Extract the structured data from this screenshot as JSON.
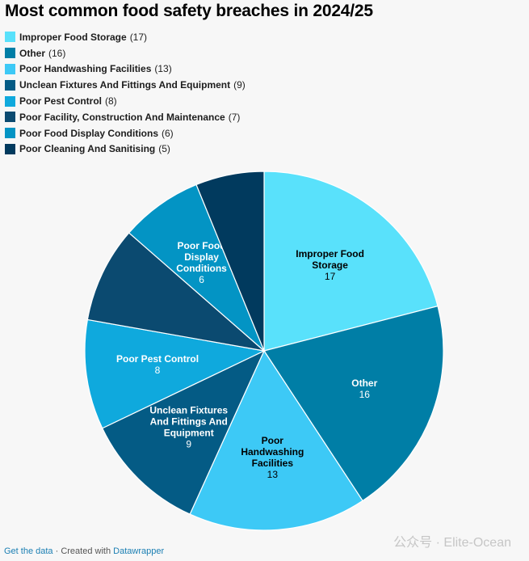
{
  "title": "Most common food safety breaches in 2024/25",
  "chart_data": {
    "type": "pie",
    "title": "Most common food safety breaches in 2024/25",
    "legend_position": "top-left",
    "slices": [
      {
        "label": "Improper Food Storage",
        "value": 17,
        "color": "#59e1fb",
        "label_color": "#000000",
        "show_label": true
      },
      {
        "label": "Other",
        "value": 16,
        "color": "#007ea6",
        "label_color": "#ffffff",
        "show_label": true
      },
      {
        "label": "Poor Handwashing Facilities",
        "value": 13,
        "color": "#3dc9f6",
        "label_color": "#000000",
        "show_label": true
      },
      {
        "label": "Unclean Fixtures And Fittings And Equipment",
        "value": 9,
        "color": "#045b85",
        "label_color": "#ffffff",
        "show_label": true
      },
      {
        "label": "Poor Pest Control",
        "value": 8,
        "color": "#0fa9dd",
        "label_color": "#ffffff",
        "show_label": true
      },
      {
        "label": "Poor Facility, Construction And Maintenance",
        "value": 7,
        "color": "#0b4a70",
        "label_color": "#ffffff",
        "show_label": false
      },
      {
        "label": "Poor Food Display Conditions",
        "value": 6,
        "color": "#0394c4",
        "label_color": "#ffffff",
        "show_label": true
      },
      {
        "label": "Poor Cleaning And Sanitising",
        "value": 5,
        "color": "#013a5e",
        "label_color": "#ffffff",
        "show_label": false
      }
    ]
  },
  "footer": {
    "get_data": "Get the data",
    "separator": " · Created with ",
    "tool": "Datawrapper"
  },
  "watermark": "公众号 · Elite-Ocean"
}
